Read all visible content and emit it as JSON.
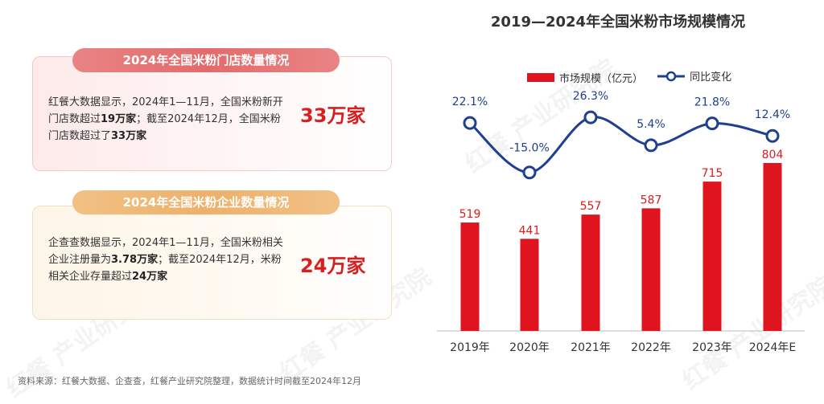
{
  "left_panel": {
    "card1": {
      "title": "2024年全国米粉门店数量情况",
      "desc_part1": "红餐大数据显示，2024年1—11月，全国米粉新开门店数超过",
      "desc_bold1": "19万家",
      "desc_part2": "；截至2024年12月，全国米粉门店数超过了",
      "desc_bold2": "33万家",
      "highlight": "33万家"
    },
    "card2": {
      "title": "2024年全国米粉企业数量情况",
      "desc_part1": "企查查数据显示，2024年1—11月，全国米粉相关企业注册量为",
      "desc_bold1": "3.78万家",
      "desc_part2": "；截至2024年12月，米粉相关企业存量超过",
      "desc_bold2": "24万家",
      "highlight": "24万家"
    }
  },
  "source": "资料来源：红餐大数据、企查查，红餐产业研究院整理，数据统计时间截至2024年12月",
  "colors": {
    "bar": "#e0141e",
    "line": "#1f3f8f",
    "accent_red": "#d81e1e"
  },
  "chart_data": {
    "type": "bar+line",
    "title": "2019—2024年全国米粉市场规模情况",
    "categories": [
      "2019年",
      "2020年",
      "2021年",
      "2022年",
      "2023年",
      "2024年E"
    ],
    "series": [
      {
        "name": "市场规模（亿元）",
        "type": "bar",
        "values": [
          519,
          441,
          557,
          587,
          715,
          804
        ],
        "labels": [
          "519",
          "441",
          "557",
          "587",
          "715",
          "804"
        ]
      },
      {
        "name": "同比变化",
        "type": "line",
        "values": [
          22.1,
          -15.0,
          26.3,
          5.4,
          21.8,
          12.4
        ],
        "labels": [
          "22.1%",
          "-15.0%",
          "26.3%",
          "5.4%",
          "21.8%",
          "12.4%"
        ]
      }
    ],
    "bar_ylim": [
      0,
      900
    ],
    "line_ylim": [
      -20,
      30
    ],
    "legend_position": "top"
  },
  "watermark": "红餐 产业研究院"
}
